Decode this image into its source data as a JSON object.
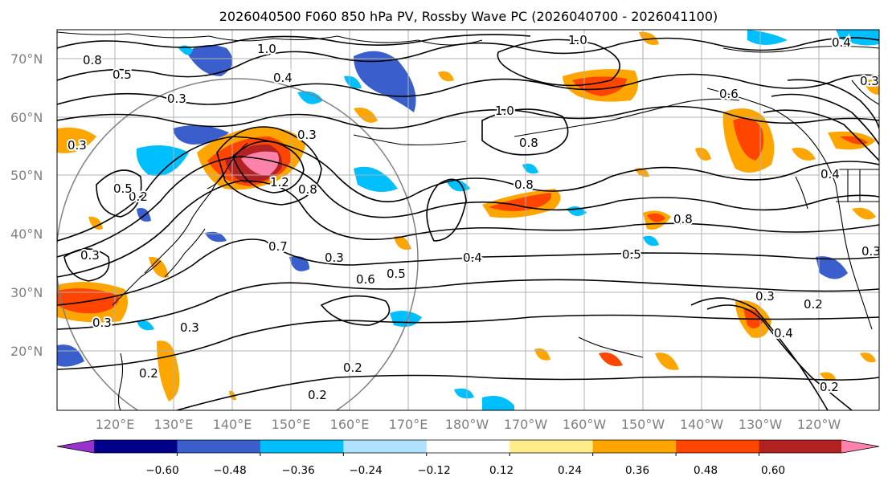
{
  "title": "2026040500 F060 850 hPa PV, Rossby Wave PC (2026040700 - 2026041100)",
  "lat_labels": [
    "70°N",
    "60°N",
    "50°N",
    "40°N",
    "30°N",
    "20°N"
  ],
  "lon_labels": [
    "120°E",
    "130°E",
    "140°E",
    "150°E",
    "160°E",
    "170°E",
    "180°W",
    "170°W",
    "160°W",
    "150°W",
    "140°W",
    "130°W",
    "120°W"
  ],
  "colorbar": {
    "ticks": [
      "−0.60",
      "−0.48",
      "−0.36",
      "−0.24",
      "−0.12",
      "0.12",
      "0.24",
      "0.36",
      "0.48",
      "0.60"
    ],
    "colors": [
      "#9932cc",
      "#00008b",
      "#3a5fcd",
      "#00bfff",
      "#b0e2ff",
      "#ffffff",
      "#ffec8b",
      "#ffa500",
      "#ff4500",
      "#b22222",
      "#ff82ab"
    ]
  },
  "contour_labels": [
    "1.0",
    "1.0",
    "0.4",
    "0.3",
    "0.8",
    "0.5",
    "0.6",
    "1.0",
    "0.8",
    "0.3",
    "1.2",
    "0.8",
    "0.2",
    "0.5",
    "0.8",
    "0.8",
    "0.5",
    "0.3",
    "0.7",
    "0.4",
    "0.3",
    "0.6",
    "0.5",
    "0.3",
    "0.3",
    "0.2",
    "0.2",
    "0.2",
    "0.2",
    "0.3",
    "0.4",
    "0.2",
    "0.3",
    "0.4",
    "0.3",
    "0.3",
    "0.4"
  ]
}
